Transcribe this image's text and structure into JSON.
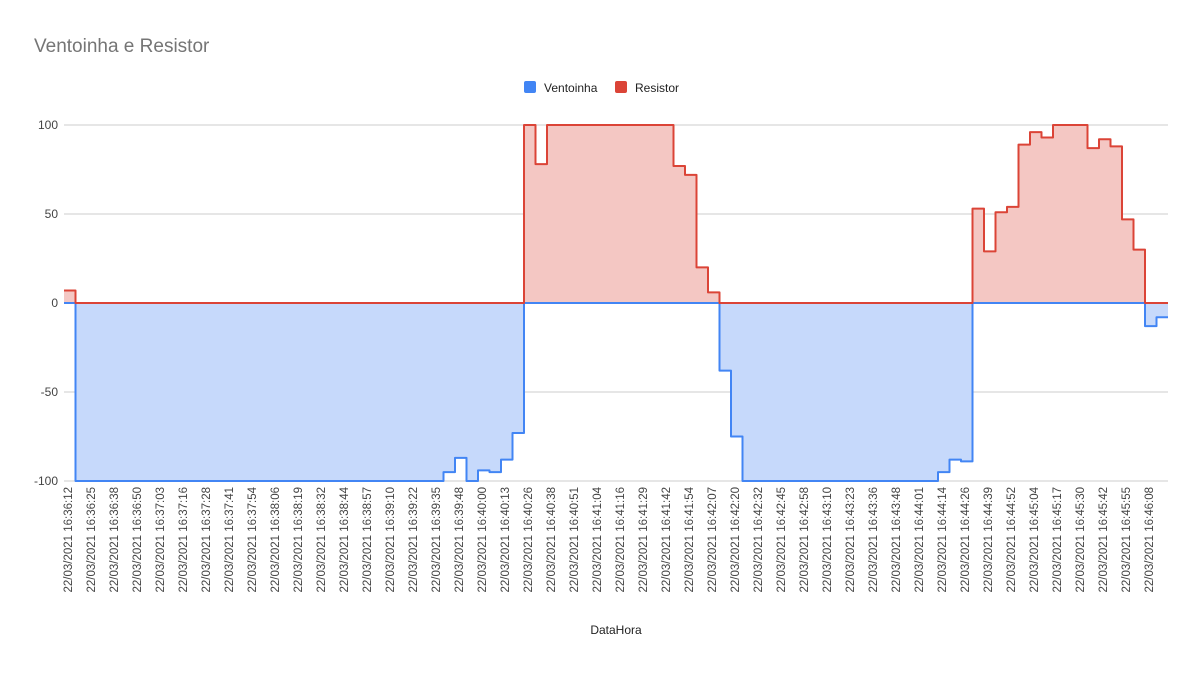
{
  "chart_data": {
    "type": "area",
    "title": "Ventoinha e Resistor",
    "xlabel": "DataHora",
    "ylabel": "",
    "ylim": [
      -100,
      100
    ],
    "yticks": [
      100,
      50,
      0,
      -50,
      -100
    ],
    "legend_position": "top-center",
    "grid": true,
    "x_tick_labels": [
      "22/03/2021 16:36:12",
      "22/03/2021 16:36:25",
      "22/03/2021 16:36:38",
      "22/03/2021 16:36:50",
      "22/03/2021 16:37:03",
      "22/03/2021 16:37:16",
      "22/03/2021 16:37:28",
      "22/03/2021 16:37:41",
      "22/03/2021 16:37:54",
      "22/03/2021 16:38:06",
      "22/03/2021 16:38:19",
      "22/03/2021 16:38:32",
      "22/03/2021 16:38:44",
      "22/03/2021 16:38:57",
      "22/03/2021 16:39:10",
      "22/03/2021 16:39:22",
      "22/03/2021 16:39:35",
      "22/03/2021 16:39:48",
      "22/03/2021 16:40:00",
      "22/03/2021 16:40:13",
      "22/03/2021 16:40:26",
      "22/03/2021 16:40:38",
      "22/03/2021 16:40:51",
      "22/03/2021 16:41:04",
      "22/03/2021 16:41:16",
      "22/03/2021 16:41:29",
      "22/03/2021 16:41:42",
      "22/03/2021 16:41:54",
      "22/03/2021 16:42:07",
      "22/03/2021 16:42:20",
      "22/03/2021 16:42:32",
      "22/03/2021 16:42:45",
      "22/03/2021 16:42:58",
      "22/03/2021 16:43:10",
      "22/03/2021 16:43:23",
      "22/03/2021 16:43:36",
      "22/03/2021 16:43:48",
      "22/03/2021 16:44:01",
      "22/03/2021 16:44:14",
      "22/03/2021 16:44:26",
      "22/03/2021 16:44:39",
      "22/03/2021 16:44:52",
      "22/03/2021 16:45:04",
      "22/03/2021 16:45:17",
      "22/03/2021 16:45:30",
      "22/03/2021 16:45:42",
      "22/03/2021 16:45:55",
      "22/03/2021 16:46:08"
    ],
    "series": [
      {
        "name": "Ventoinha",
        "color": "#4285f4",
        "fill": "#c6d9fb",
        "points": [
          [
            0,
            0
          ],
          [
            0.5,
            -100
          ],
          [
            16.5,
            -95
          ],
          [
            17,
            -87
          ],
          [
            17.5,
            -100
          ],
          [
            18,
            -94
          ],
          [
            18.5,
            -95
          ],
          [
            19,
            -88
          ],
          [
            19.5,
            -73
          ],
          [
            20,
            0
          ],
          [
            28.5,
            -38
          ],
          [
            29,
            -75
          ],
          [
            29.5,
            -100
          ],
          [
            38,
            -95
          ],
          [
            38.5,
            -88
          ],
          [
            39,
            -89
          ],
          [
            39.5,
            0
          ],
          [
            47,
            -13
          ],
          [
            47.5,
            -8
          ],
          [
            48,
            -8
          ]
        ]
      },
      {
        "name": "Resistor",
        "color": "#db4437",
        "fill": "#f4c7c3",
        "points": [
          [
            0,
            7
          ],
          [
            0.5,
            0
          ],
          [
            20,
            100
          ],
          [
            20.5,
            78
          ],
          [
            21,
            100
          ],
          [
            26.5,
            77
          ],
          [
            27,
            72
          ],
          [
            27.5,
            20
          ],
          [
            28,
            6
          ],
          [
            28.5,
            0
          ],
          [
            39.5,
            53
          ],
          [
            40,
            29
          ],
          [
            40.5,
            51
          ],
          [
            41,
            54
          ],
          [
            41.5,
            89
          ],
          [
            42,
            96
          ],
          [
            42.5,
            93
          ],
          [
            43,
            100
          ],
          [
            44.5,
            87
          ],
          [
            45,
            92
          ],
          [
            45.5,
            88
          ],
          [
            46,
            47
          ],
          [
            46.5,
            30
          ],
          [
            47,
            0
          ],
          [
            48,
            0
          ]
        ]
      }
    ]
  }
}
